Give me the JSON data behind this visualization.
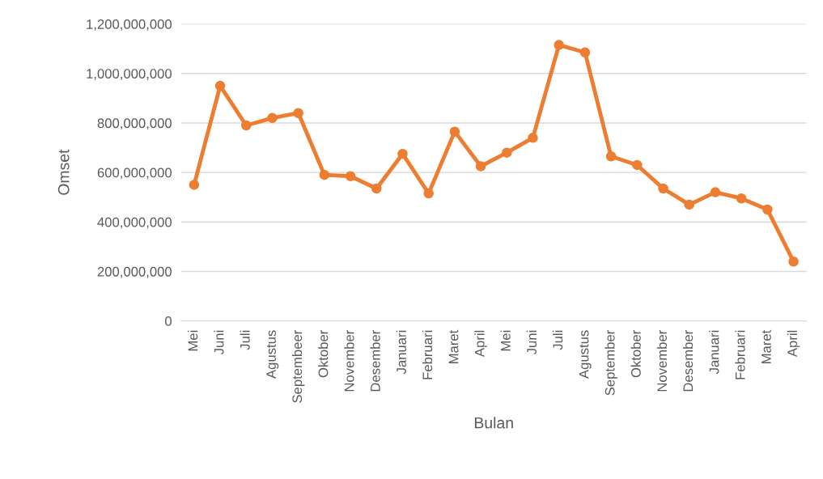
{
  "chart_data": {
    "type": "line",
    "xlabel": "Bulan",
    "ylabel": "Omset",
    "categories": [
      "Mei",
      "Juni",
      "Juli",
      "Agustus",
      "Septembeer",
      "Oktober",
      "November",
      "Desember",
      "Januari",
      "Februari",
      "Maret",
      "April",
      "Mei",
      "Juni",
      "Juli",
      "Agustus",
      "September",
      "Oktober",
      "November",
      "Desember",
      "Januari",
      "Februari",
      "Maret",
      "April"
    ],
    "series": [
      {
        "color": "#ed7d31",
        "values": [
          550000000,
          950000000,
          790000000,
          820000000,
          840000000,
          590000000,
          585000000,
          535000000,
          675000000,
          515000000,
          765000000,
          625000000,
          680000000,
          740000000,
          1115000000,
          1085000000,
          665000000,
          630000000,
          535000000,
          470000000,
          520000000,
          495000000,
          450000000,
          240000000
        ]
      }
    ],
    "ylim": [
      0,
      1200000000
    ],
    "yticks": [
      {
        "value": 0,
        "label": "0"
      },
      {
        "value": 200000000,
        "label": "200,000,000"
      },
      {
        "value": 400000000,
        "label": "400,000,000"
      },
      {
        "value": 600000000,
        "label": "600,000,000"
      },
      {
        "value": 800000000,
        "label": "800,000,000"
      },
      {
        "value": 1000000000,
        "label": "1,000,000,000"
      },
      {
        "value": 1200000000,
        "label": "1,200,000,000"
      }
    ],
    "grid": "y",
    "marker": "circle",
    "line_style": "solid",
    "legend": false
  }
}
